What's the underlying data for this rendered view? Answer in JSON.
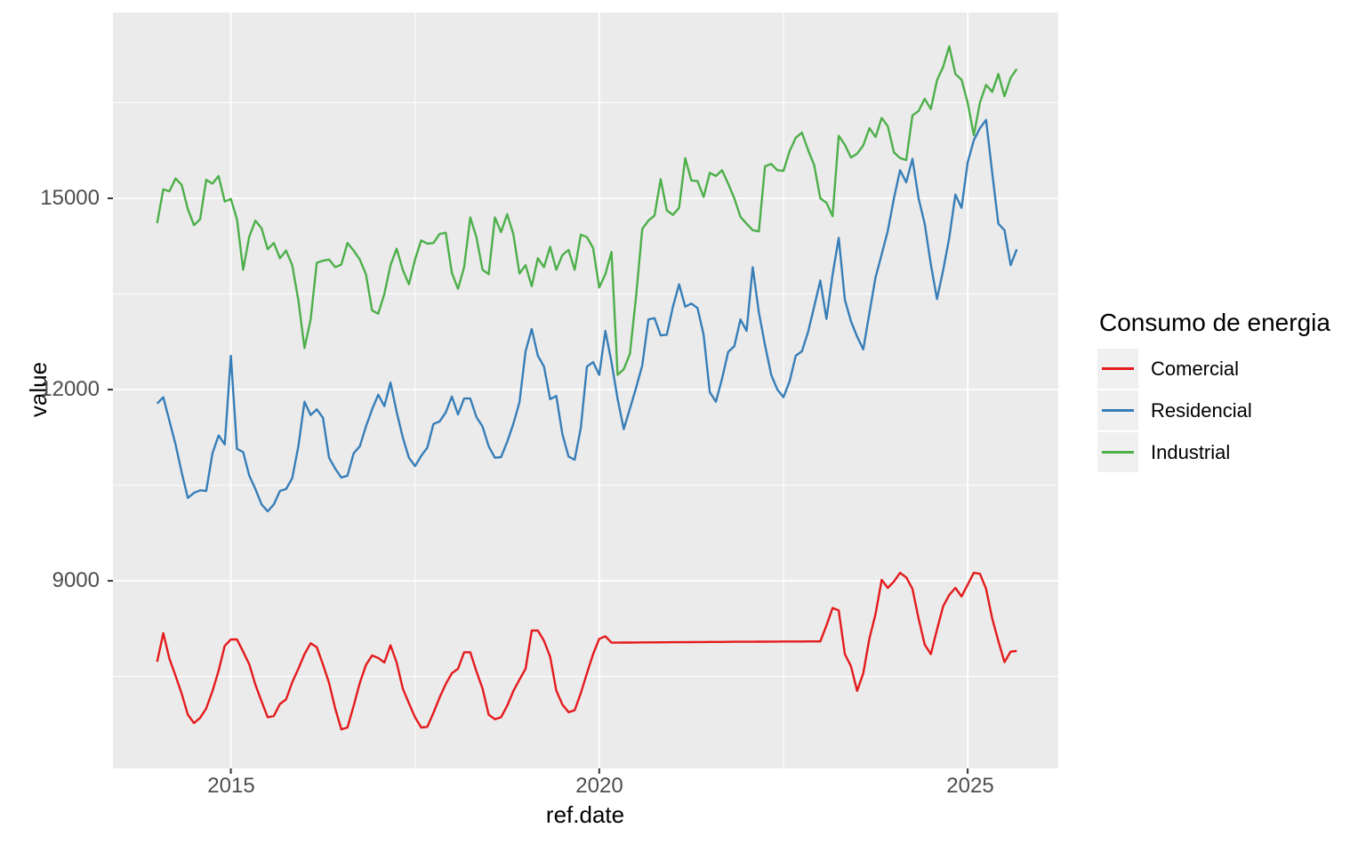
{
  "chart_data": {
    "type": "line",
    "title": "",
    "xlabel": "ref.date",
    "ylabel": "value",
    "legend_title": "Consumo de energia",
    "legend_position": "right",
    "grid": true,
    "x_start_year": 2014,
    "x_step_months": 1,
    "xlim": [
      2013.4,
      2026.23
    ],
    "ylim": [
      6058,
      17915
    ],
    "x_ticks": [
      {
        "label": "2015",
        "value": 2015
      },
      {
        "label": "2020",
        "value": 2020
      },
      {
        "label": "2025",
        "value": 2025
      }
    ],
    "y_ticks": [
      {
        "label": "9000",
        "value": 9000
      },
      {
        "label": "12000",
        "value": 12000
      },
      {
        "label": "15000",
        "value": 15000
      }
    ],
    "x_minor": [
      2017.5,
      2022.5
    ],
    "y_minor": [
      7500,
      10500,
      13500,
      16500
    ],
    "colors": {
      "panel_background": "#EBEBEB",
      "gridline": "#FFFFFF",
      "tick_mark": "#333333",
      "tick_label": "#4D4D4D",
      "legend_key_background": "#F0F0F0"
    },
    "series": [
      {
        "name": "Comercial",
        "color": "#E41A1C",
        "values": [
          7730,
          8180,
          7780,
          7510,
          7230,
          6900,
          6770,
          6850,
          7000,
          7270,
          7590,
          7980,
          8080,
          8080,
          7890,
          7690,
          7370,
          7110,
          6860,
          6880,
          7070,
          7140,
          7410,
          7620,
          7850,
          8020,
          7960,
          7690,
          7400,
          7000,
          6670,
          6700,
          7040,
          7400,
          7680,
          7830,
          7790,
          7720,
          7990,
          7720,
          7310,
          7080,
          6860,
          6700,
          6710,
          6930,
          7170,
          7380,
          7550,
          7620,
          7880,
          7880,
          7580,
          7310,
          6900,
          6830,
          6860,
          7040,
          7270,
          7450,
          7620,
          8220,
          8220,
          8060,
          7810,
          7280,
          7060,
          6940,
          6970,
          7240,
          7550,
          7850,
          8090,
          8130,
          8030,
          8031,
          8032,
          8032,
          8033,
          8034,
          8034,
          8035,
          8036,
          8036,
          8037,
          8038,
          8038,
          8039,
          8040,
          8040,
          8041,
          8042,
          8042,
          8043,
          8044,
          8044,
          8045,
          8045,
          8046,
          8046,
          8047,
          8047,
          8048,
          8048,
          8049,
          8049,
          8050,
          8050,
          8050,
          8300,
          8575,
          8535,
          7850,
          7660,
          7275,
          7550,
          8095,
          8480,
          9015,
          8890,
          8990,
          9125,
          9055,
          8875,
          8410,
          8000,
          7850,
          8235,
          8600,
          8780,
          8890,
          8755,
          8940,
          9125,
          9110,
          8875,
          8410,
          8055,
          7725,
          7890,
          7900
        ]
      },
      {
        "name": "Residencial",
        "color": "#377EB8",
        "values": [
          11780,
          11880,
          11510,
          11140,
          10700,
          10300,
          10380,
          10420,
          10410,
          11000,
          11280,
          11140,
          12530,
          11070,
          11020,
          10650,
          10440,
          10200,
          10090,
          10200,
          10410,
          10440,
          10610,
          11110,
          11810,
          11600,
          11690,
          11560,
          10930,
          10760,
          10620,
          10650,
          11000,
          11110,
          11420,
          11690,
          11920,
          11740,
          12110,
          11650,
          11250,
          10930,
          10800,
          10960,
          11090,
          11460,
          11500,
          11640,
          11890,
          11610,
          11860,
          11860,
          11570,
          11420,
          11110,
          10930,
          10940,
          11180,
          11460,
          11800,
          12600,
          12950,
          12530,
          12360,
          11850,
          11900,
          11300,
          10950,
          10900,
          11400,
          12360,
          12430,
          12230,
          12920,
          12430,
          11850,
          11380,
          11700,
          12030,
          12380,
          13100,
          13120,
          12850,
          12860,
          13300,
          13650,
          13300,
          13350,
          13280,
          12860,
          11960,
          11810,
          12170,
          12590,
          12680,
          13100,
          12920,
          13920,
          13210,
          12700,
          12230,
          12000,
          11880,
          12130,
          12530,
          12600,
          12900,
          13300,
          13710,
          13110,
          13800,
          14380,
          13410,
          13070,
          12830,
          12630,
          13200,
          13760,
          14120,
          14490,
          15000,
          15440,
          15250,
          15620,
          15000,
          14600,
          13960,
          13420,
          13870,
          14380,
          15060,
          14850,
          15560,
          15910,
          16100,
          16230,
          15400,
          14600,
          14500,
          13950,
          14200
        ]
      },
      {
        "name": "Industrial",
        "color": "#4DAF4A",
        "values": [
          14610,
          15140,
          15110,
          15310,
          15210,
          14830,
          14580,
          14670,
          15290,
          15230,
          15350,
          14950,
          14990,
          14670,
          13880,
          14400,
          14650,
          14530,
          14200,
          14300,
          14060,
          14180,
          13950,
          13400,
          12650,
          13100,
          13990,
          14020,
          14040,
          13920,
          13960,
          14300,
          14180,
          14040,
          13810,
          13240,
          13190,
          13500,
          13950,
          14210,
          13880,
          13650,
          14040,
          14340,
          14290,
          14300,
          14440,
          14460,
          13830,
          13580,
          13920,
          14700,
          14390,
          13880,
          13810,
          14700,
          14470,
          14750,
          14440,
          13820,
          13950,
          13620,
          14060,
          13920,
          14240,
          13880,
          14110,
          14190,
          13880,
          14430,
          14390,
          14220,
          13600,
          13810,
          14160,
          12230,
          12320,
          12560,
          13470,
          14520,
          14650,
          14730,
          15300,
          14810,
          14740,
          14850,
          15630,
          15280,
          15270,
          15020,
          15400,
          15350,
          15440,
          15230,
          15000,
          14710,
          14600,
          14500,
          14480,
          15500,
          15540,
          15440,
          15430,
          15740,
          15950,
          16030,
          15760,
          15520,
          15000,
          14930,
          14720,
          15980,
          15840,
          15640,
          15700,
          15830,
          16100,
          15960,
          16260,
          16130,
          15720,
          15630,
          15600,
          16300,
          16370,
          16560,
          16400,
          16850,
          17060,
          17385,
          16950,
          16860,
          16500,
          15990,
          16500,
          16780,
          16670,
          16950,
          16600,
          16890,
          17030
        ]
      }
    ]
  }
}
